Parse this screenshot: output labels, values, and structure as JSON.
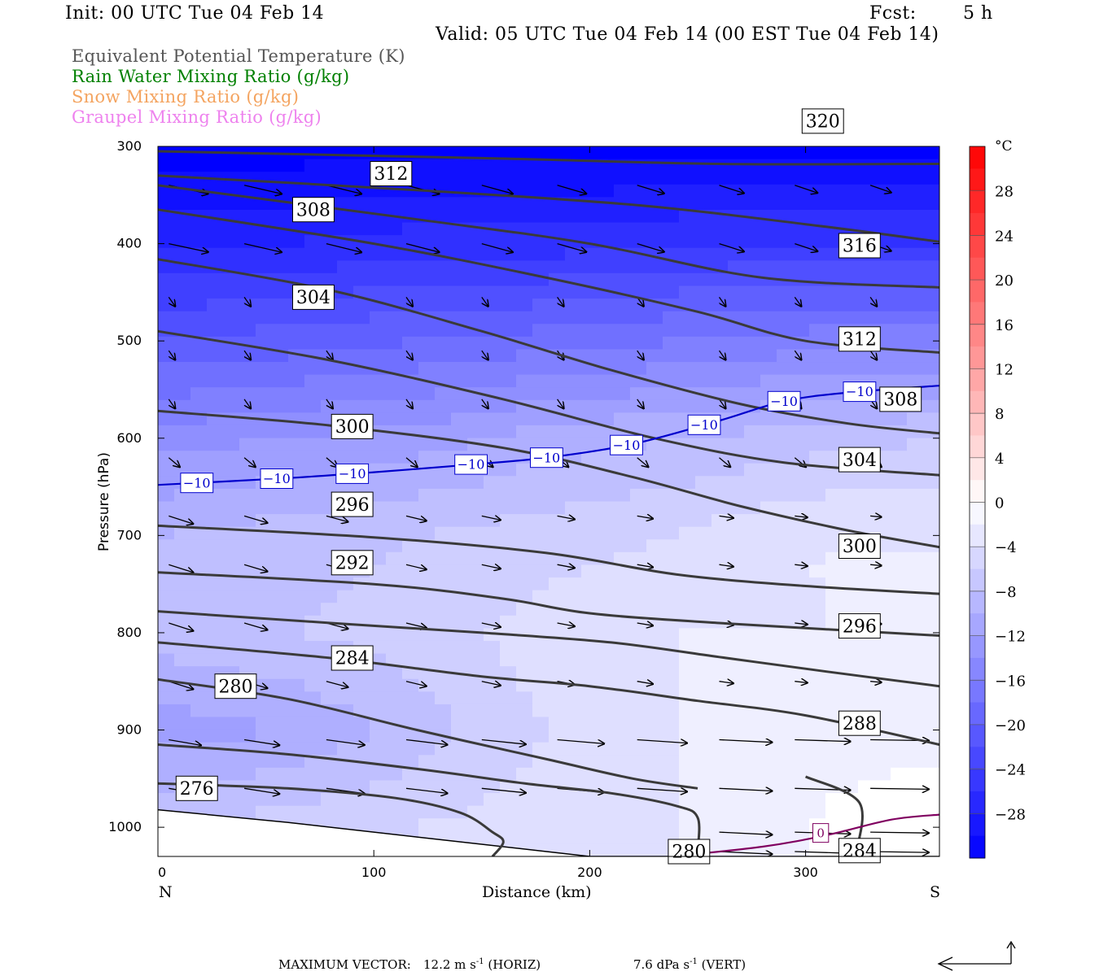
{
  "header": {
    "init": "Init: 00 UTC Tue 04 Feb 14",
    "fcst_label": "Fcst:",
    "fcst_value": "5 h",
    "valid": "Valid: 05 UTC Tue 04 Feb 14 (00 EST Tue 04 Feb 14)"
  },
  "legend": [
    {
      "label": "Equivalent Potential Temperature (K)",
      "color": "#555555"
    },
    {
      "label": "Rain Water Mixing Ratio (g/kg)",
      "color": "#008000"
    },
    {
      "label": "Snow Mixing Ratio (g/kg)",
      "color": "#f4a460"
    },
    {
      "label": "Graupel Mixing Ratio (g/kg)",
      "color": "#ee82ee"
    }
  ],
  "chart_data": {
    "type": "cross-section",
    "xlabel": "Distance (km)",
    "ylabel": "Pressure (hPa)",
    "x_ticks": [
      0,
      100,
      200,
      300
    ],
    "xlim": [
      0,
      362
    ],
    "y_ticks": [
      300,
      400,
      500,
      600,
      700,
      800,
      900,
      1000
    ],
    "ylim": [
      300,
      1030
    ],
    "y_reversed": true,
    "left_end_label": "N",
    "right_end_label": "S",
    "colorbar": {
      "unit": "°C",
      "labels": [
        28,
        24,
        20,
        16,
        12,
        8,
        4,
        0,
        -4,
        -8,
        -12,
        -16,
        -20,
        -24,
        -28
      ],
      "range": [
        -32,
        32
      ],
      "neg_color": "#0000ff",
      "pos_color": "#ff0000"
    },
    "temperature_shading": {
      "x": [
        0,
        60,
        120,
        180,
        240,
        300,
        362
      ],
      "p": [
        300,
        400,
        500,
        600,
        700,
        800,
        900,
        1000
      ],
      "temp": [
        [
          -32,
          -32,
          -32,
          -32,
          -32,
          -32,
          -32
        ],
        [
          -27,
          -27,
          -26,
          -26,
          -25,
          -25,
          -25
        ],
        [
          -21,
          -20,
          -19,
          -18,
          -17,
          -16,
          -16
        ],
        [
          -14,
          -13,
          -12,
          -10,
          -9,
          -8,
          -7
        ],
        [
          -9,
          -8,
          -7,
          -6,
          -5,
          -3,
          -3
        ],
        [
          -8,
          -7,
          -6,
          -4,
          -3,
          -3,
          -3
        ],
        [
          -12,
          -11,
          -8,
          -5,
          -3,
          -2,
          -2
        ],
        [
          -7,
          -6,
          -5,
          -4,
          -3,
          -1,
          1
        ]
      ]
    },
    "isotherm": {
      "value": -10,
      "label": "−10",
      "color": "#0000cc",
      "points": [
        [
          0,
          648
        ],
        [
          60,
          641
        ],
        [
          100,
          635
        ],
        [
          140,
          628
        ],
        [
          180,
          620
        ],
        [
          220,
          606
        ],
        [
          260,
          582
        ],
        [
          290,
          562
        ],
        [
          320,
          553
        ],
        [
          362,
          546
        ]
      ],
      "label_x": [
        18,
        55,
        90,
        145,
        180,
        217,
        253,
        290,
        325
      ]
    },
    "zero_isotherm": {
      "value": 0,
      "label": "0",
      "color": "#800060",
      "points": [
        [
          238,
          1030
        ],
        [
          280,
          1020
        ],
        [
          310,
          1008
        ],
        [
          340,
          992
        ],
        [
          362,
          987
        ]
      ],
      "label_x": [
        307
      ]
    },
    "surface_pressure": [
      [
        0,
        982
      ],
      [
        60,
        995
      ],
      [
        120,
        1010
      ],
      [
        180,
        1025
      ],
      [
        200,
        1030
      ],
      [
        362,
        1030
      ]
    ],
    "theta_e_contours": [
      {
        "value": 276,
        "label": "276",
        "points": [
          [
            0,
            955
          ],
          [
            60,
            960
          ],
          [
            110,
            970
          ],
          [
            140,
            985
          ],
          [
            155,
            1005
          ],
          [
            160,
            1015
          ],
          [
            155,
            1030
          ]
        ],
        "label_pos": [
          [
            18,
            960
          ]
        ]
      },
      {
        "value": 280,
        "label": "280",
        "points": [
          [
            0,
            915
          ],
          [
            60,
            925
          ],
          [
            120,
            940
          ],
          [
            170,
            955
          ],
          [
            210,
            965
          ],
          [
            240,
            978
          ],
          [
            250,
            990
          ],
          [
            250,
            1025
          ]
        ],
        "label_pos": [
          [
            36,
            855
          ],
          [
            246,
            1025
          ]
        ]
      },
      {
        "value": 280,
        "label": "",
        "points": [
          [
            0,
            848
          ],
          [
            60,
            868
          ],
          [
            120,
            900
          ],
          [
            180,
            930
          ],
          [
            220,
            950
          ],
          [
            250,
            960
          ]
        ],
        "label_pos": []
      },
      {
        "value": 284,
        "label": "284",
        "points": [
          [
            0,
            810
          ],
          [
            80,
            826
          ],
          [
            150,
            845
          ],
          [
            200,
            855
          ],
          [
            250,
            870
          ],
          [
            300,
            885
          ],
          [
            362,
            915
          ]
        ],
        "label_pos": [
          [
            90,
            826
          ],
          [
            325,
            1024
          ]
        ]
      },
      {
        "value": 284,
        "label": "",
        "points": [
          [
            300,
            948
          ],
          [
            325,
            975
          ],
          [
            323,
            1030
          ]
        ],
        "label_pos": []
      },
      {
        "value": 288,
        "label": "288",
        "points": [
          [
            0,
            778
          ],
          [
            80,
            790
          ],
          [
            150,
            800
          ],
          [
            210,
            810
          ],
          [
            260,
            825
          ],
          [
            310,
            840
          ],
          [
            362,
            855
          ]
        ],
        "label_pos": [
          [
            325,
            893
          ]
        ]
      },
      {
        "value": 292,
        "label": "292",
        "points": [
          [
            0,
            738
          ],
          [
            100,
            750
          ],
          [
            160,
            765
          ],
          [
            200,
            780
          ],
          [
            260,
            790
          ],
          [
            362,
            803
          ]
        ],
        "label_pos": [
          [
            90,
            728
          ]
        ]
      },
      {
        "value": 296,
        "label": "296",
        "points": [
          [
            0,
            690
          ],
          [
            100,
            702
          ],
          [
            180,
            718
          ],
          [
            240,
            740
          ],
          [
            300,
            752
          ],
          [
            362,
            760
          ]
        ],
        "label_pos": [
          [
            90,
            668
          ],
          [
            325,
            793
          ]
        ]
      },
      {
        "value": 300,
        "label": "300",
        "points": [
          [
            0,
            572
          ],
          [
            80,
            587
          ],
          [
            160,
            610
          ],
          [
            220,
            640
          ],
          [
            270,
            670
          ],
          [
            320,
            695
          ],
          [
            362,
            712
          ]
        ],
        "label_pos": [
          [
            90,
            588
          ],
          [
            325,
            711
          ]
        ]
      },
      {
        "value": 304,
        "label": "304",
        "points": [
          [
            0,
            490
          ],
          [
            80,
            520
          ],
          [
            160,
            560
          ],
          [
            230,
            600
          ],
          [
            290,
            625
          ],
          [
            362,
            638
          ]
        ],
        "label_pos": [
          [
            72,
            455
          ],
          [
            325,
            622
          ]
        ]
      },
      {
        "value": 308,
        "label": "308",
        "points": [
          [
            0,
            416
          ],
          [
            80,
            448
          ],
          [
            150,
            490
          ],
          [
            210,
            530
          ],
          [
            270,
            565
          ],
          [
            320,
            585
          ],
          [
            362,
            595
          ]
        ],
        "label_pos": [
          [
            72,
            365
          ],
          [
            344,
            560
          ]
        ]
      },
      {
        "value": 312,
        "label": "312",
        "points": [
          [
            0,
            365
          ],
          [
            100,
            400
          ],
          [
            180,
            435
          ],
          [
            250,
            470
          ],
          [
            300,
            500
          ],
          [
            362,
            512
          ]
        ],
        "label_pos": [
          [
            108,
            328
          ],
          [
            325,
            498
          ]
        ]
      },
      {
        "value": 316,
        "label": "316",
        "points": [
          [
            0,
            340
          ],
          [
            120,
            375
          ],
          [
            200,
            400
          ],
          [
            280,
            435
          ],
          [
            362,
            445
          ]
        ],
        "label_pos": [
          [
            325,
            402
          ]
        ]
      },
      {
        "value": 316,
        "label": "",
        "points": [
          [
            0,
            330
          ],
          [
            120,
            345
          ],
          [
            220,
            360
          ],
          [
            300,
            380
          ],
          [
            362,
            398
          ]
        ],
        "label_pos": []
      },
      {
        "value": 320,
        "label": "320",
        "points": [
          [
            0,
            305
          ],
          [
            150,
            312
          ],
          [
            260,
            318
          ],
          [
            362,
            318
          ]
        ],
        "label_pos": [
          [
            308,
            274
          ]
        ]
      }
    ],
    "vector_rows_p": [
      340,
      400,
      455,
      510,
      560,
      620,
      680,
      730,
      790,
      850,
      910,
      960,
      1005,
      1025
    ],
    "vector_cols_x": [
      5,
      40,
      78,
      115,
      150,
      185,
      222,
      260,
      295,
      330
    ],
    "maximum_vector": {
      "label": "MAXIMUM VECTOR:",
      "horiz_value": "12.2 m s",
      "horiz_exp": "-1",
      "horiz_suffix": "(HORIZ)",
      "vert_value": "7.6 dPa s",
      "vert_exp": "-1",
      "vert_suffix": "(VERT)"
    }
  }
}
